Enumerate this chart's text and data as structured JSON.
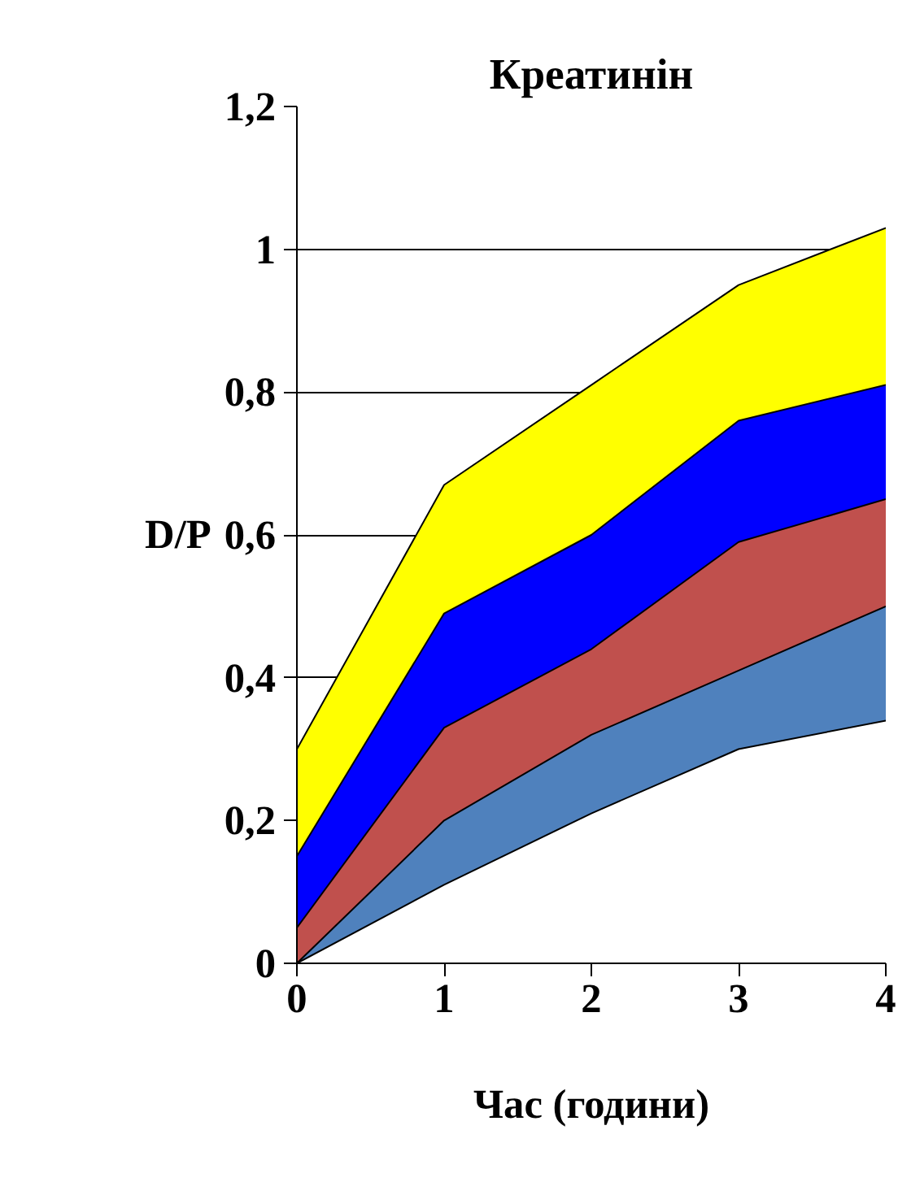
{
  "chart_data": {
    "type": "area",
    "title": "Креатинін",
    "xlabel": "Час (години)",
    "ylabel": "D/P",
    "x": [
      0,
      1,
      2,
      3,
      4
    ],
    "series": [
      {
        "color": "#ffff00",
        "values": [
          0.3,
          0.67,
          0.81,
          0.95,
          1.03
        ]
      },
      {
        "color": "#0000ff",
        "values": [
          0.15,
          0.49,
          0.6,
          0.76,
          0.81
        ]
      },
      {
        "color": "#c0504d",
        "values": [
          0.05,
          0.33,
          0.44,
          0.59,
          0.65
        ]
      },
      {
        "color": "#4f81bd",
        "values": [
          0,
          0.2,
          0.32,
          0.41,
          0.5
        ]
      },
      {
        "color": "#ffffff",
        "values": [
          0,
          0.11,
          0.21,
          0.3,
          0.34
        ]
      }
    ],
    "xlim": [
      0,
      4
    ],
    "xticks": [
      0,
      1,
      2,
      3,
      4
    ],
    "ylim": [
      0,
      1.2
    ],
    "yticks": [
      0,
      {
        "value": 0.2,
        "label": "0,2"
      },
      {
        "value": 0.4,
        "label": "0,4"
      },
      {
        "value": 0.6,
        "label": "0,6"
      },
      {
        "value": 0.8,
        "label": "0,8"
      },
      1,
      {
        "value": 1.2,
        "label": "1,2"
      }
    ],
    "grid": "y"
  }
}
